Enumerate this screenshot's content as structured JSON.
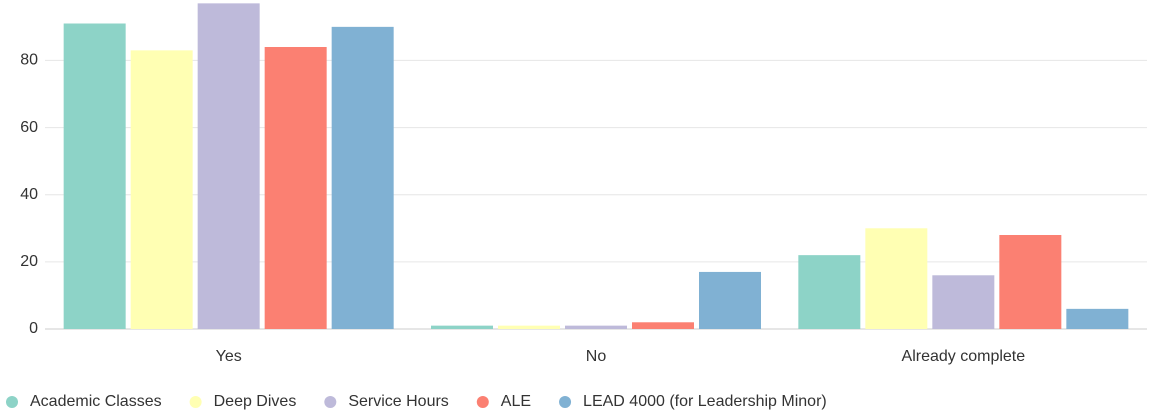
{
  "chart_data": {
    "type": "bar",
    "categories": [
      "Yes",
      "No",
      "Already complete"
    ],
    "series": [
      {
        "name": "Academic Classes",
        "color": "#8dd3c7",
        "values": [
          91,
          1,
          22
        ]
      },
      {
        "name": "Deep Dives",
        "color": "#ffffb3",
        "values": [
          83,
          1,
          30
        ]
      },
      {
        "name": "Service Hours",
        "color": "#bebada",
        "values": [
          97,
          1,
          16
        ]
      },
      {
        "name": "ALE",
        "color": "#fb8072",
        "values": [
          84,
          2,
          28
        ]
      },
      {
        "name": "LEAD 4000 (for Leadership Minor)",
        "color": "#80b1d3",
        "values": [
          90,
          17,
          6
        ]
      }
    ],
    "ylim": [
      0,
      98
    ],
    "yticks": [
      0,
      20,
      40,
      60,
      80
    ],
    "grid": true,
    "legend": "bottom"
  }
}
